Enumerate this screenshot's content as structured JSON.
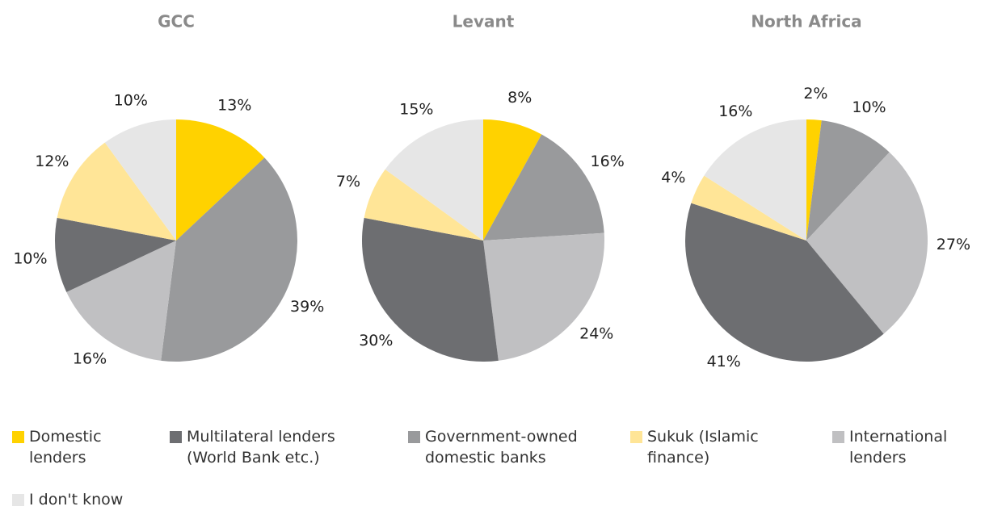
{
  "chart_data": [
    {
      "type": "pie",
      "title": "GCC",
      "values": [
        13,
        10,
        39,
        12,
        16,
        10
      ],
      "value_labels": [
        "13%",
        "10%",
        "39%",
        "12%",
        "16%",
        "10%"
      ]
    },
    {
      "type": "pie",
      "title": "Levant",
      "values": [
        8,
        30,
        16,
        7,
        24,
        15
      ],
      "value_labels": [
        "8%",
        "30%",
        "16%",
        "7%",
        "24%",
        "15%"
      ]
    },
    {
      "type": "pie",
      "title": "North Africa",
      "values": [
        2,
        41,
        10,
        4,
        27,
        16
      ],
      "value_labels": [
        "2%",
        "41%",
        "10%",
        "4%",
        "27%",
        "16%"
      ]
    }
  ],
  "legend": {
    "names": [
      "Domestic lenders",
      "Multilateral lenders (World Bank etc.)",
      "Government-owned domestic banks",
      "Sukuk (Islamic finance)",
      "International lenders",
      "I don't know"
    ],
    "colors": [
      "#ffd200",
      "#6d6e71",
      "#999a9c",
      "#ffe597",
      "#c0c0c2",
      "#e6e6e6"
    ]
  }
}
